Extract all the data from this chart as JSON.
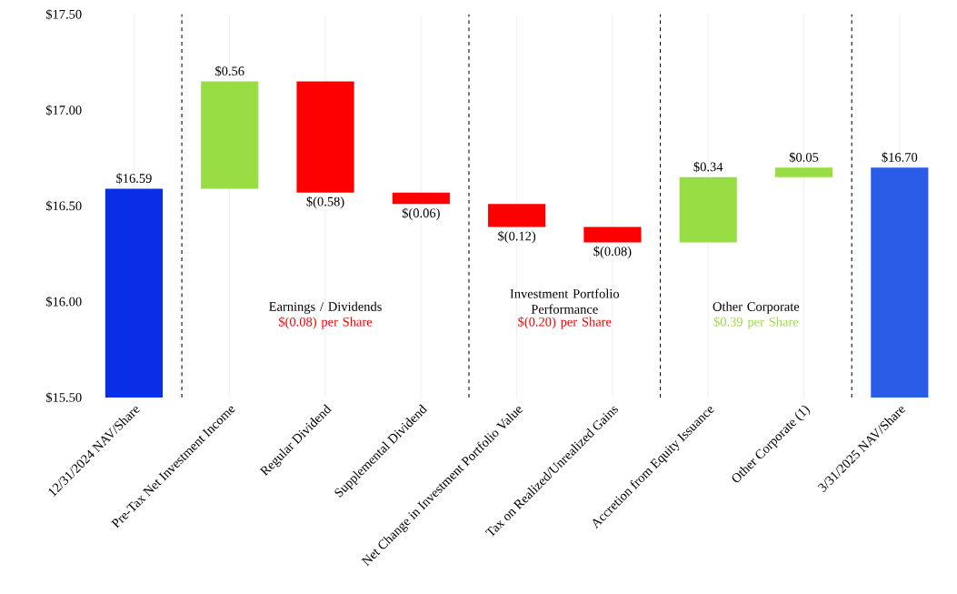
{
  "chart_data": {
    "type": "bar",
    "categories": [
      "12/31/2024 NAV/Share",
      "Pre-Tax Net Investment Income",
      "Regular Dividend",
      "Supplemental Dividend",
      "Net Change in Investment Portfolio Value",
      "Tax on Realized/Unrealized Gains",
      "Accretion from Equity Issuance",
      "Other Corporate (1)",
      "3/31/2025 NAV/Share"
    ],
    "values": [
      16.59,
      0.56,
      -0.58,
      -0.06,
      -0.12,
      -0.08,
      0.34,
      0.05,
      16.7
    ],
    "base": [
      null,
      16.59,
      17.15,
      16.57,
      16.51,
      16.39,
      16.31,
      16.65,
      null
    ],
    "colors": [
      "#0a2ee6",
      "#99dd44",
      "#ff0000",
      "#ff0000",
      "#ff0000",
      "#ff0000",
      "#99dd44",
      "#99dd44",
      "#2a5ce8"
    ],
    "value_labels": [
      "$16.59",
      "$0.56",
      "$(0.58)",
      "$(0.06)",
      "$(0.12)",
      "$(0.08)",
      "$0.34",
      "$0.05",
      "$16.70"
    ],
    "ylim": [
      15.5,
      17.5
    ],
    "yticks": [
      {
        "value": 15.5,
        "label": "$15.50"
      },
      {
        "value": 16.0,
        "label": "$16.00"
      },
      {
        "value": 16.5,
        "label": "$16.50"
      },
      {
        "value": 17.0,
        "label": "$17.00"
      },
      {
        "value": 17.5,
        "label": "$17.50"
      }
    ],
    "grid": "x",
    "annotations": [
      "Earnings / Dividends",
      "$(0.08) per Share",
      "Investment Portfolio Performance",
      "$(0.20) per Share",
      "Other Corporate",
      "$0.39 per Share"
    ]
  }
}
